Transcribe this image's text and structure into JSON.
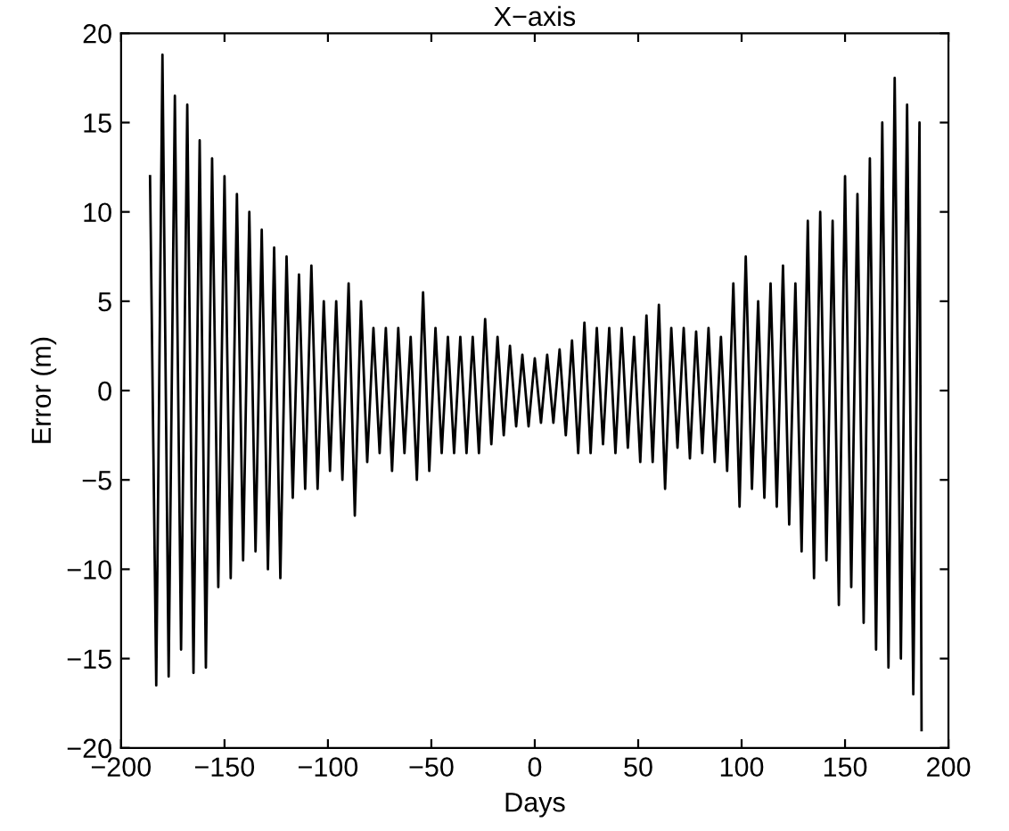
{
  "chart_data": {
    "type": "line",
    "title": "X−axis",
    "xlabel": "Days",
    "ylabel": "Error (m)",
    "x": [
      -186,
      -183,
      -180,
      -177,
      -174,
      -171,
      -168,
      -165,
      -162,
      -159,
      -156,
      -153,
      -150,
      -147,
      -144,
      -141,
      -138,
      -135,
      -132,
      -129,
      -126,
      -123,
      -120,
      -117,
      -114,
      -111,
      -108,
      -105,
      -102,
      -99,
      -96,
      -93,
      -90,
      -87,
      -84,
      -81,
      -78,
      -75,
      -72,
      -69,
      -66,
      -63,
      -60,
      -57,
      -54,
      -51,
      -48,
      -45,
      -42,
      -39,
      -36,
      -33,
      -30,
      -27,
      -24,
      -21,
      -18,
      -15,
      -12,
      -9,
      -6,
      -3,
      0,
      3,
      6,
      9,
      12,
      15,
      18,
      21,
      24,
      27,
      30,
      33,
      36,
      39,
      42,
      45,
      48,
      51,
      54,
      57,
      60,
      63,
      66,
      69,
      72,
      75,
      78,
      81,
      84,
      87,
      90,
      93,
      96,
      99,
      102,
      105,
      108,
      111,
      114,
      117,
      120,
      123,
      126,
      129,
      132,
      135,
      138,
      141,
      144,
      147,
      150,
      153,
      156,
      159,
      162,
      165,
      168,
      171,
      174,
      177,
      180,
      183,
      186,
      187
    ],
    "series": [
      {
        "color": "#000000",
        "values": [
          12,
          -16.5,
          18.8,
          -16,
          16.5,
          -14.5,
          16,
          -15.8,
          14,
          -15.5,
          13,
          -11,
          12,
          -10.5,
          11,
          -9.5,
          10,
          -9,
          9,
          -10,
          8,
          -10.5,
          7.5,
          -6,
          6.5,
          -5.5,
          7,
          -5.5,
          5,
          -4.5,
          5,
          -5,
          6,
          -7,
          5,
          -4,
          3.5,
          -3.5,
          3.5,
          -4.5,
          3.5,
          -3.5,
          3,
          -5,
          5.5,
          -4.5,
          3.5,
          -3.5,
          3,
          -3.5,
          3,
          -3.5,
          3,
          -3.5,
          4,
          -3,
          3,
          -2.5,
          2.5,
          -2,
          2,
          -2,
          1.8,
          -1.8,
          2,
          -1.8,
          2.3,
          -2.5,
          2.8,
          -3.5,
          3.8,
          -3.5,
          3.5,
          -3,
          3.5,
          -3.5,
          3.5,
          -3.2,
          3,
          -4,
          4.2,
          -4,
          4.8,
          -5.5,
          3.5,
          -3.2,
          3.5,
          -3.8,
          3.3,
          -3.5,
          3.5,
          -4,
          3,
          -4.5,
          6,
          -6.5,
          7.5,
          -5.5,
          5,
          -6,
          6,
          -6.5,
          7,
          -7.5,
          6,
          -9,
          9.5,
          -10.5,
          10,
          -9.5,
          9.5,
          -12,
          12,
          -11,
          11,
          -13,
          13,
          -14.5,
          15,
          -15.5,
          17.5,
          -15,
          16,
          -17,
          15,
          -19
        ]
      }
    ],
    "xlim": [
      -200,
      200
    ],
    "xticks": [
      {
        "value": -200,
        "label": "−200"
      },
      {
        "value": -150,
        "label": "−150"
      },
      {
        "value": -100,
        "label": "−100"
      },
      {
        "value": -50,
        "label": "−50"
      },
      0,
      50,
      100,
      150,
      200
    ],
    "ylim": [
      -20,
      20
    ],
    "yticks": [
      {
        "value": -20,
        "label": "−20"
      },
      {
        "value": -15,
        "label": "−15"
      },
      {
        "value": -10,
        "label": "−10"
      },
      {
        "value": -5,
        "label": "−5"
      },
      0,
      5,
      10,
      15,
      20
    ],
    "grid": false,
    "legend": false,
    "marker": "none",
    "line_style": "solid"
  }
}
